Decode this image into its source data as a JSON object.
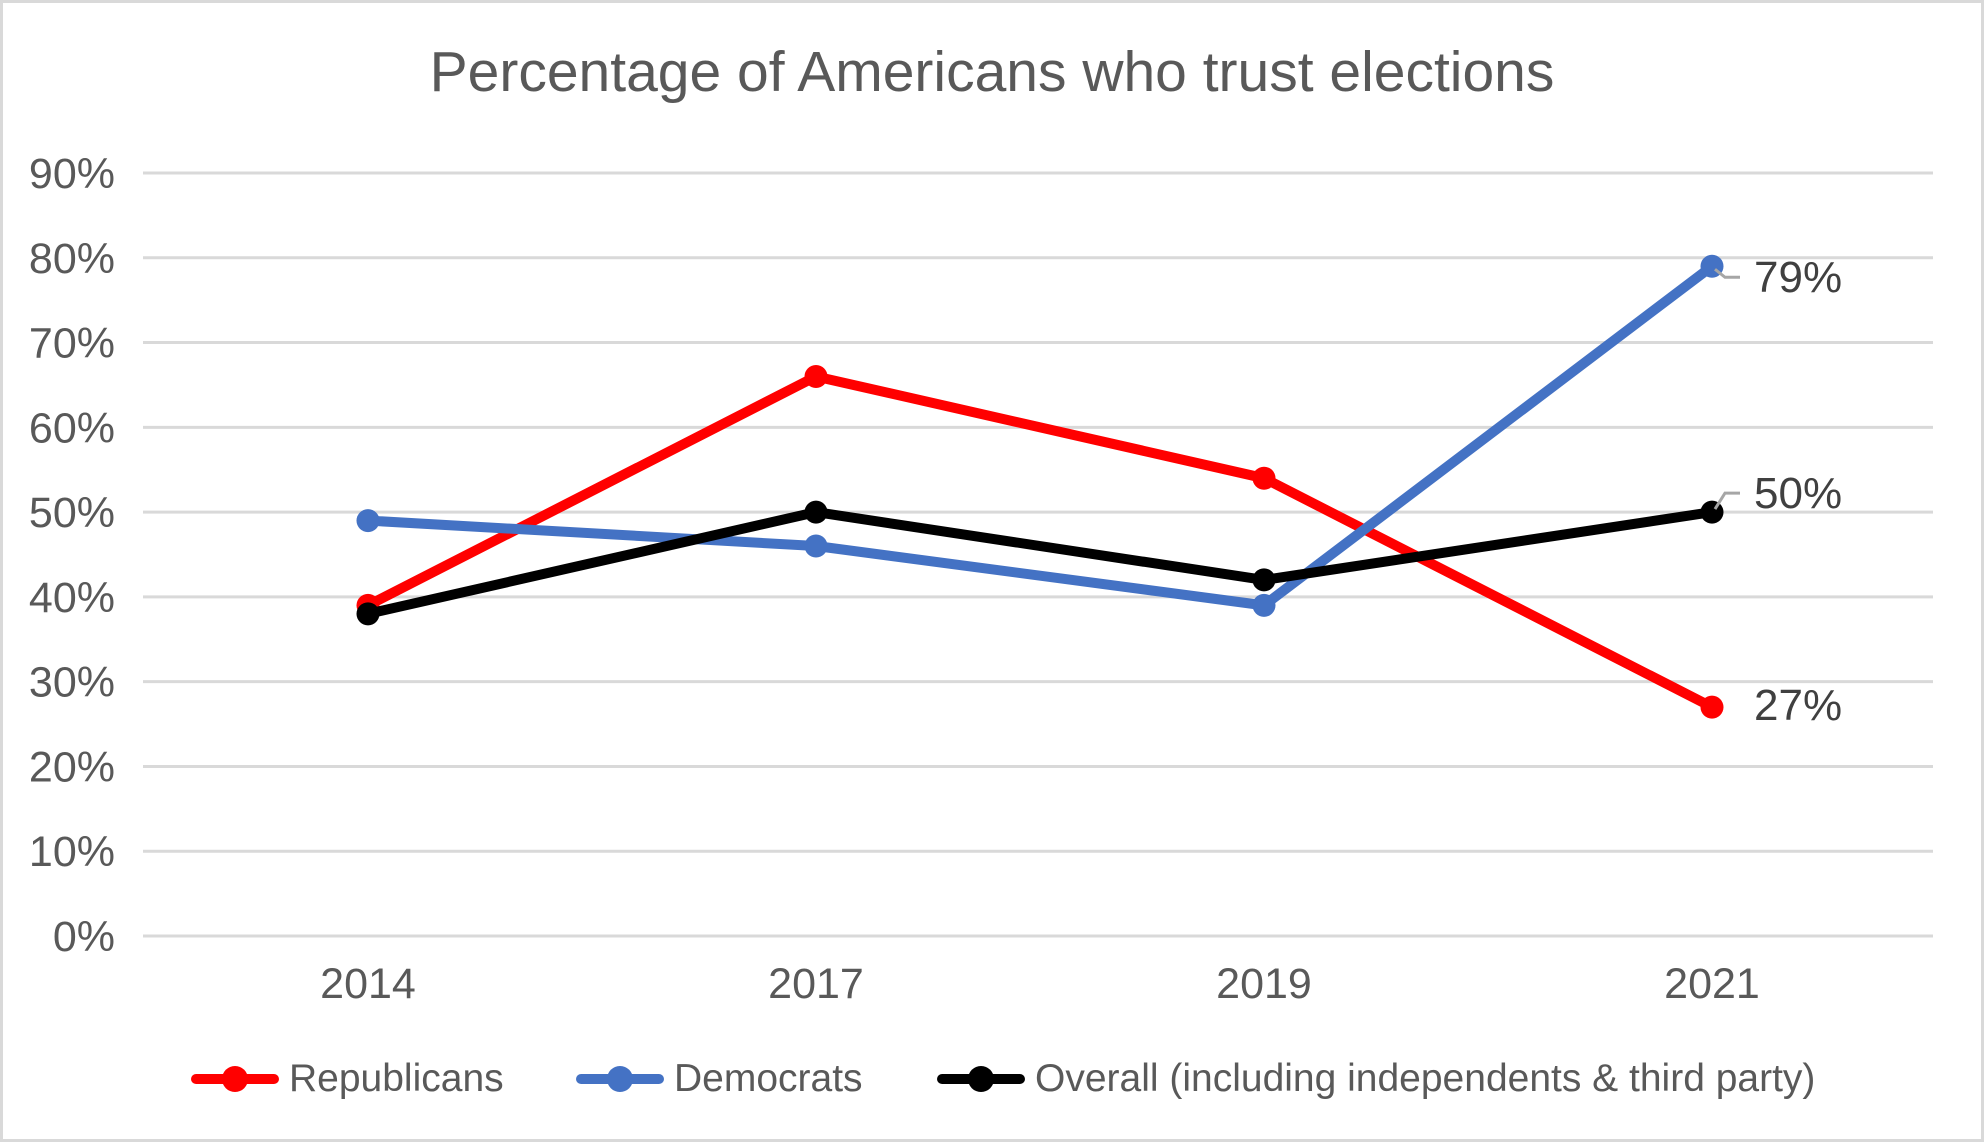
{
  "chart_data": {
    "type": "line",
    "title": "Percentage of Americans who trust elections",
    "categories": [
      "2014",
      "2017",
      "2019",
      "2021"
    ],
    "series": [
      {
        "name": "Republicans",
        "color": "#FF0000",
        "values": [
          39,
          66,
          54,
          27
        ]
      },
      {
        "name": "Democrats",
        "color": "#4472C4",
        "values": [
          49,
          46,
          39,
          79
        ]
      },
      {
        "name": "Overall (including independents & third party)",
        "color": "#000000",
        "values": [
          38,
          50,
          42,
          50
        ]
      }
    ],
    "xlabel": "",
    "ylabel": "",
    "y_axis": {
      "min": 0,
      "max": 90,
      "step": 10,
      "tick_labels": [
        "0%",
        "10%",
        "20%",
        "30%",
        "40%",
        "50%",
        "60%",
        "70%",
        "80%",
        "90%"
      ]
    },
    "x_axis": {
      "tick_labels": [
        "2014",
        "2017",
        "2019",
        "2021"
      ]
    },
    "end_labels": [
      {
        "series": "Democrats",
        "text": "79%"
      },
      {
        "series": "Overall (including independents & third party)",
        "text": "50%"
      },
      {
        "series": "Republicans",
        "text": "27%"
      }
    ],
    "grid": true,
    "legend_position": "bottom",
    "colors": {
      "grid": "#D9D9D9",
      "axis_text": "#595959",
      "title_text": "#595959",
      "data_label_text": "#404040",
      "leader_line": "#A6A6A6",
      "background": "#FFFFFF",
      "border": "#D9D9D9"
    }
  }
}
